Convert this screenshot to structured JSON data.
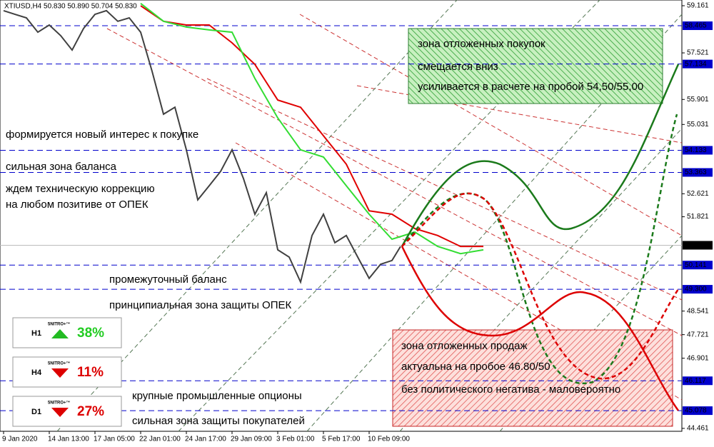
{
  "chart_data": {
    "type": "line",
    "title": "XTIUSD,H4  50.830 50.890 50.704 50.830",
    "xlim": [
      -1.25,
      237.5
    ],
    "ylim": [
      44.36,
      59.36
    ],
    "xticks": [
      {
        "value": 0,
        "label": "9 Jan 2020"
      },
      {
        "value": 16,
        "label": "14 Jan 13:00"
      },
      {
        "value": 32,
        "label": "17 Jan 05:00"
      },
      {
        "value": 48,
        "label": "22 Jan 01:00"
      },
      {
        "value": 64,
        "label": "24 Jan 17:00"
      },
      {
        "value": 80,
        "label": "29 Jan 09:00"
      },
      {
        "value": 96,
        "label": "3 Feb 01:00"
      },
      {
        "value": 112,
        "label": "5 Feb 17:00"
      },
      {
        "value": 128,
        "label": "10 Feb 09:00"
      }
    ],
    "yticks": [
      59.161,
      57.521,
      55.901,
      55.031,
      52.621,
      51.821,
      48.541,
      47.721,
      46.901,
      44.461
    ],
    "series": [
      {
        "color": "#404040",
        "x": [
          0,
          4,
          8,
          12,
          16,
          20,
          24,
          28,
          32,
          36,
          40,
          44,
          48,
          52,
          56,
          60,
          64,
          68,
          72,
          76,
          80,
          84,
          88,
          92,
          96,
          100,
          104,
          108,
          112,
          116,
          120,
          124,
          128,
          132,
          136,
          139
        ],
        "values": [
          58.99,
          58.86,
          58.74,
          58.24,
          58.49,
          58.12,
          57.62,
          58.37,
          58.86,
          58.99,
          58.62,
          58.74,
          58.24,
          56.88,
          55.39,
          55.63,
          54.15,
          52.41,
          52.9,
          53.4,
          54.15,
          53.15,
          51.91,
          52.66,
          50.67,
          50.42,
          49.55,
          51.17,
          51.91,
          50.92,
          51.17,
          50.42,
          49.68,
          50.17,
          50.3,
          50.79
        ]
      },
      {
        "color": "#e00000",
        "x": [
          48,
          56,
          64,
          72,
          80,
          88,
          96,
          104,
          112,
          120,
          128,
          136,
          144,
          152,
          160,
          168
        ],
        "values": [
          59.16,
          58.62,
          58.49,
          58.49,
          57.87,
          57.12,
          55.88,
          55.63,
          54.64,
          53.65,
          52.03,
          51.91,
          51.41,
          51.17,
          50.79,
          50.79
        ]
      },
      {
        "color": "#33dd33",
        "x": [
          48,
          56,
          64,
          72,
          80,
          88,
          96,
          104,
          112,
          120,
          128,
          136,
          144,
          152,
          160,
          168
        ],
        "values": [
          59.24,
          58.62,
          58.42,
          58.32,
          58.24,
          56.63,
          55.26,
          54.15,
          53.9,
          52.9,
          51.91,
          51.04,
          51.29,
          50.79,
          50.54,
          50.67
        ]
      }
    ],
    "levels": {
      "color": "#0000cc",
      "values": [
        58.465,
        57.134,
        54.133,
        53.363,
        50.141,
        49.3,
        46.117,
        45.078
      ],
      "value_labels": [
        "58.465",
        "57.134",
        "54.133",
        "53.363",
        "50.141",
        "49.300",
        "46.117",
        "45.078"
      ]
    },
    "current_price": 50.83,
    "current_price_label": "50.830"
  },
  "annotations": {
    "left": [
      "формируется новый интерес к покупке",
      "сильная зона баланса",
      "ждем техническую коррекцию",
      "на любом позитиве от ОПЕК",
      "промежуточный баланс",
      "принципиальная зона защиты ОПЕК",
      "крупные промышленные опционы",
      "сильная зона защиты покупателей"
    ],
    "buy_zone": [
      "зона отложенных покупок",
      "смещается вниз",
      "усиливается в расчете на пробой 54,50/55,00"
    ],
    "sell_zone": [
      "зона отложенных продаж",
      "актуальна на пробое 46.80/50",
      "без политического негатива - маловероятно"
    ]
  },
  "widgets": [
    {
      "timeframe": "H1",
      "brand": "5NITRO+™",
      "value": "38%"
    },
    {
      "timeframe": "H4",
      "brand": "5NITRO+™",
      "value": "11%"
    },
    {
      "timeframe": "D1",
      "brand": "5NITRO+™",
      "value": "27%"
    }
  ]
}
